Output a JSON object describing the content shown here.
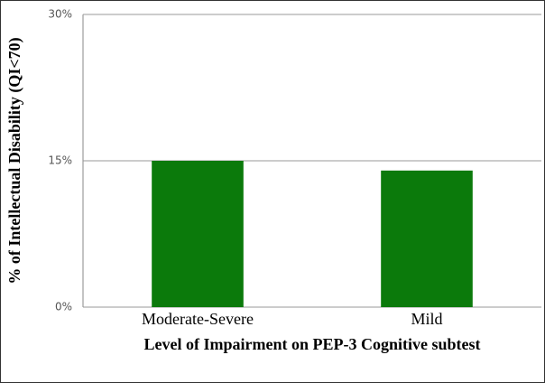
{
  "chart_data": {
    "type": "bar",
    "categories": [
      "Moderate-Severe",
      "Mild"
    ],
    "values": [
      15,
      14
    ],
    "color": "#0b7a0b",
    "ylim": [
      0,
      30
    ],
    "yticks": [
      {
        "value": 0,
        "label": "0%"
      },
      {
        "value": 15,
        "label": "15%"
      },
      {
        "value": 30,
        "label": "30%"
      }
    ],
    "grid": true,
    "y_label": "% of Intellectual Disability (QI<70)",
    "x_label": "Level of Impairment on PEP-3 Cognitive subtest"
  }
}
